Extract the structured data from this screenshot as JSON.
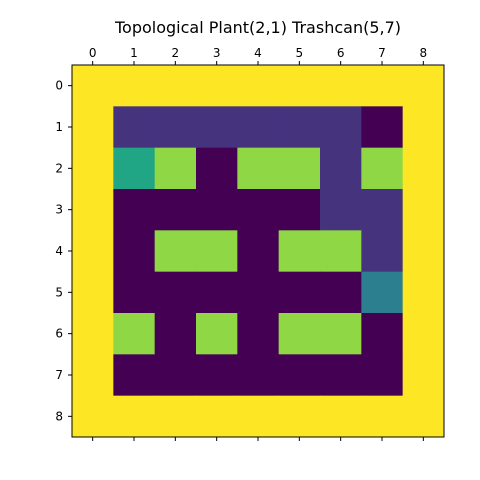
{
  "chart_data": {
    "type": "heatmap",
    "title": "Topological Plant(2,1) Trashcan(5,7)",
    "xlabel": "",
    "ylabel": "",
    "x_ticks": [
      "0",
      "1",
      "2",
      "3",
      "4",
      "5",
      "6",
      "7",
      "8"
    ],
    "y_ticks": [
      "0",
      "1",
      "2",
      "3",
      "4",
      "5",
      "6",
      "7",
      "8"
    ],
    "x_tick_position": "top-and-bottom",
    "y_axis_inverted": true,
    "grid": false,
    "colormap": "viridis",
    "value_range": [
      0,
      5
    ],
    "colors": {
      "0": "#440154",
      "1": "#46337e",
      "2": "#365c8d",
      "2.5": "#2c7f8e",
      "3": "#21a685",
      "4": "#8fd744",
      "5": "#fde725"
    },
    "values": [
      [
        5,
        5,
        5,
        5,
        5,
        5,
        5,
        5,
        5
      ],
      [
        5,
        1,
        1,
        1,
        1,
        1,
        1,
        0,
        5
      ],
      [
        5,
        3,
        4,
        0,
        4,
        4,
        1,
        4,
        5
      ],
      [
        5,
        0,
        0,
        0,
        0,
        0,
        1,
        1,
        5
      ],
      [
        5,
        0,
        4,
        4,
        0,
        4,
        4,
        1,
        5
      ],
      [
        5,
        0,
        0,
        0,
        0,
        0,
        0,
        2.5,
        5
      ],
      [
        5,
        4,
        0,
        4,
        0,
        4,
        4,
        0,
        5
      ],
      [
        5,
        0,
        0,
        0,
        0,
        0,
        0,
        0,
        5
      ],
      [
        5,
        5,
        5,
        5,
        5,
        5,
        5,
        5,
        5
      ]
    ]
  }
}
